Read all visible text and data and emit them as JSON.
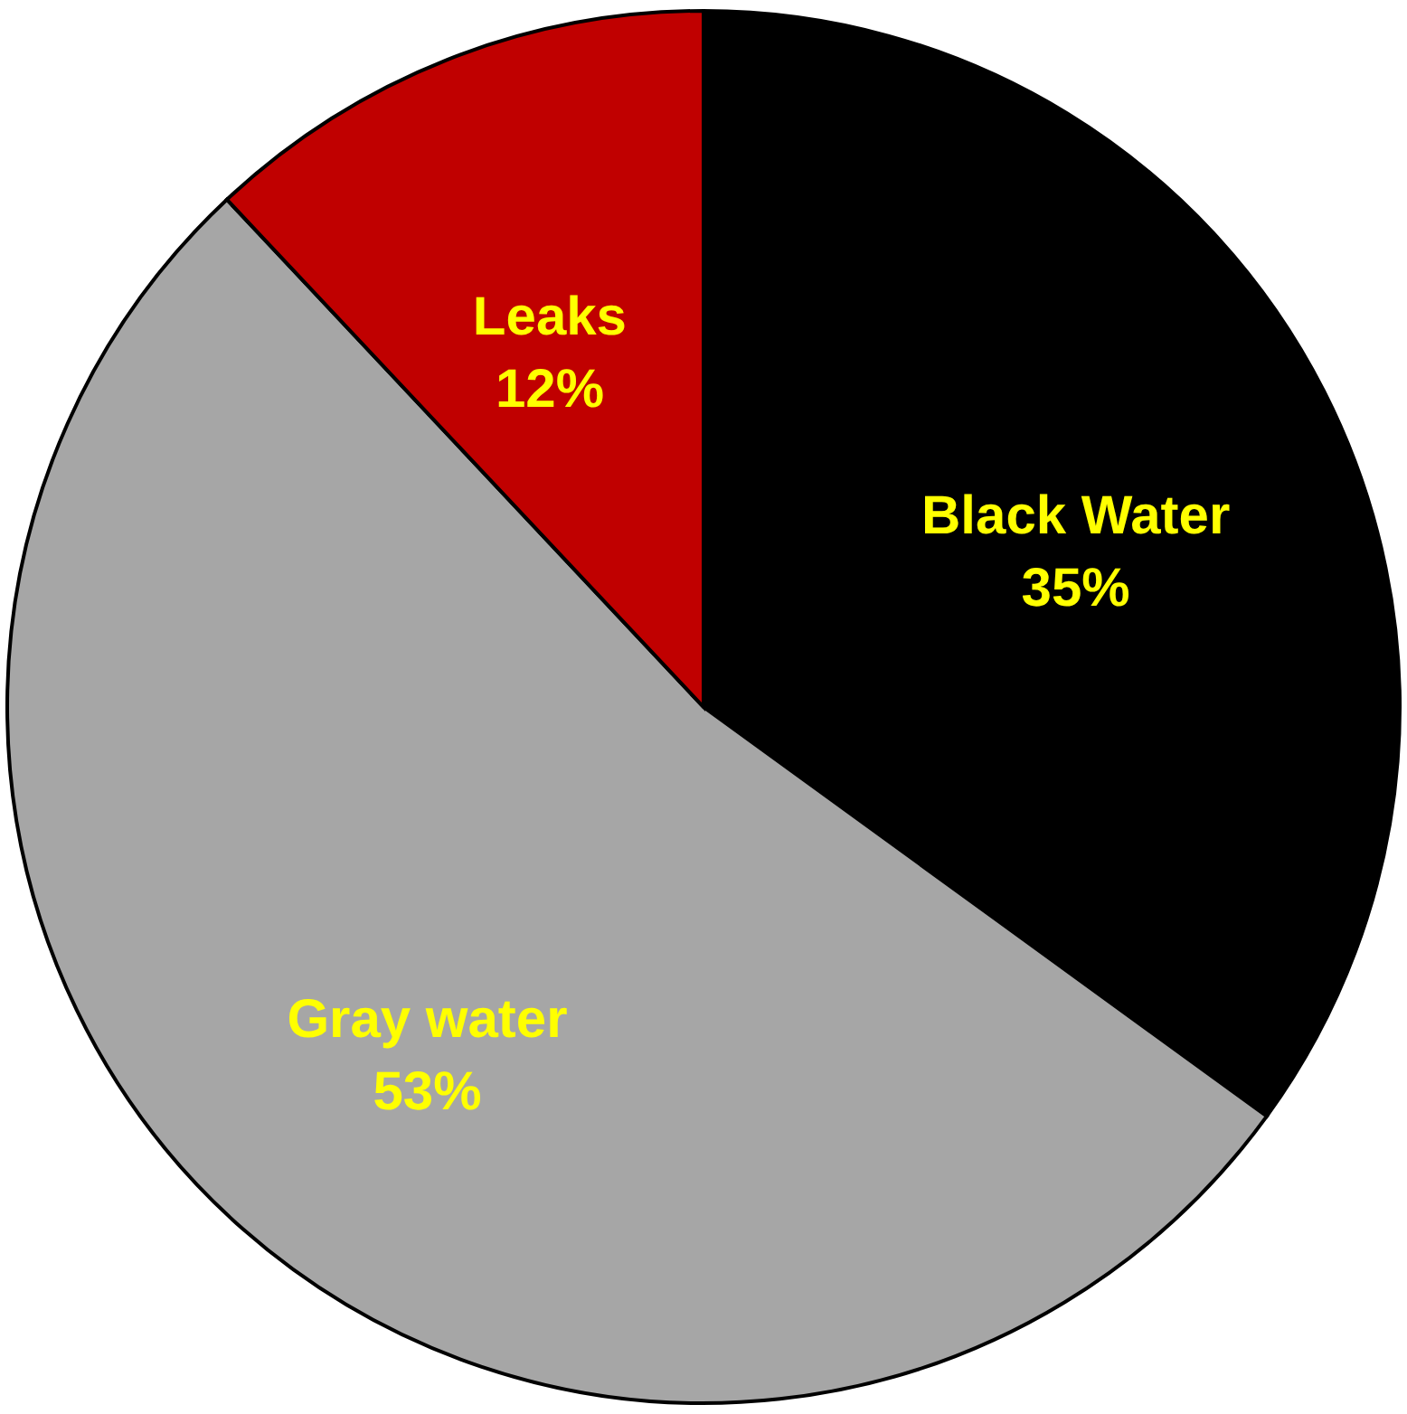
{
  "chart_data": {
    "type": "pie",
    "categories": [
      "Black Water",
      "Gray water",
      "Leaks"
    ],
    "values": [
      35,
      53,
      12
    ],
    "value_labels": [
      "35%",
      "53%",
      "12%"
    ],
    "colors": [
      "#000000",
      "#a6a6a6",
      "#c00000"
    ]
  }
}
